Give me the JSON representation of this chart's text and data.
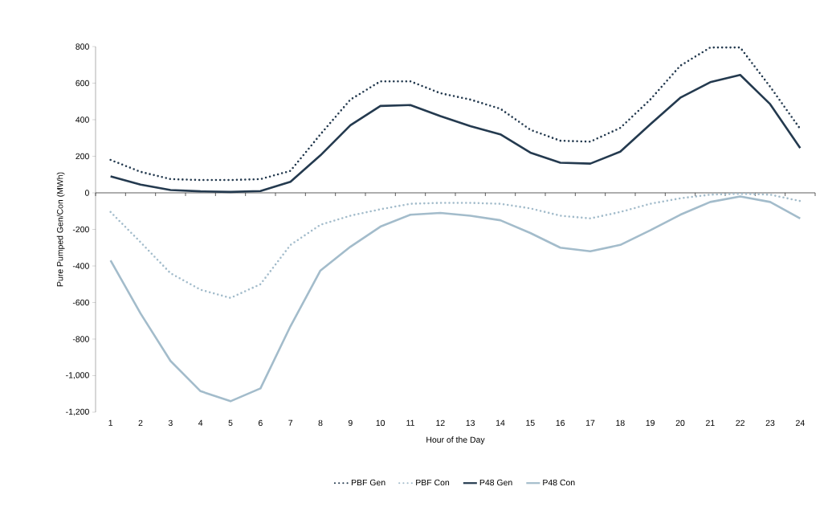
{
  "chart_data": {
    "type": "line",
    "xlabel": "Hour of the Day",
    "ylabel": "Pure Pumped Gen/Con (MWh)",
    "categories": [
      "1",
      "2",
      "3",
      "4",
      "5",
      "6",
      "7",
      "8",
      "9",
      "10",
      "11",
      "12",
      "13",
      "14",
      "15",
      "16",
      "17",
      "18",
      "19",
      "20",
      "21",
      "22",
      "23",
      "24"
    ],
    "ylim": [
      -1200,
      800
    ],
    "yticks": [
      {
        "value": -1200,
        "label": "-1,200"
      },
      {
        "value": -1000,
        "label": "-1,000"
      },
      -800,
      -600,
      -400,
      -200,
      0,
      200,
      400,
      600,
      800
    ],
    "legend": "bottom",
    "marker": "none",
    "series": [
      {
        "name": "PBF Gen",
        "color": "#243a4f",
        "line_style": "dotted",
        "values": [
          180,
          115,
          75,
          70,
          70,
          75,
          120,
          320,
          510,
          610,
          610,
          545,
          510,
          460,
          345,
          285,
          280,
          355,
          510,
          695,
          795,
          795,
          580,
          350
        ]
      },
      {
        "name": "PBF Con",
        "color": "#a3bccb",
        "line_style": "dotted",
        "values": [
          -105,
          -270,
          -440,
          -530,
          -575,
          -500,
          -285,
          -175,
          -125,
          -90,
          -60,
          -55,
          -55,
          -60,
          -85,
          -125,
          -140,
          -105,
          -60,
          -30,
          -10,
          -5,
          -10,
          -45
        ]
      },
      {
        "name": "P48 Gen",
        "color": "#243a4f",
        "line_style": "solid",
        "values": [
          90,
          45,
          15,
          8,
          5,
          10,
          60,
          205,
          370,
          475,
          480,
          420,
          365,
          320,
          220,
          165,
          160,
          225,
          375,
          520,
          605,
          645,
          485,
          245
        ]
      },
      {
        "name": "P48 Con",
        "color": "#a3bccb",
        "line_style": "solid",
        "values": [
          -370,
          -660,
          -920,
          -1085,
          -1140,
          -1070,
          -730,
          -425,
          -295,
          -185,
          -120,
          -110,
          -125,
          -150,
          -220,
          -300,
          -320,
          -285,
          -205,
          -120,
          -50,
          -20,
          -50,
          -140
        ]
      }
    ]
  }
}
